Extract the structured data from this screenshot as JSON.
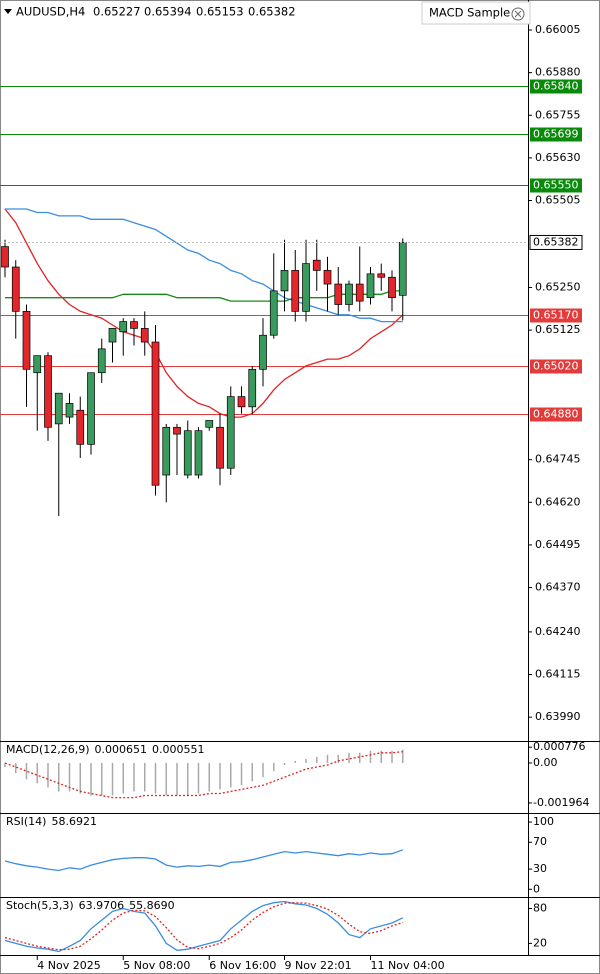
{
  "chart_data": [
    {
      "type": "candlestick",
      "title": "AUDUSD,H4",
      "expert": "MACD Sample",
      "categories": [
        null,
        null,
        null,
        "4 Nov 2025",
        null,
        null,
        null,
        null,
        null,
        null,
        null,
        "5 Nov 08:00",
        null,
        null,
        null,
        null,
        null,
        null,
        null,
        "6 Nov 16:00",
        null,
        null,
        null,
        null,
        null,
        null,
        "9 Nov 22:01",
        null,
        null,
        null,
        null,
        null,
        null,
        null,
        "11 Nov 04:00",
        null,
        null,
        null
      ],
      "candles": {
        "open": [
          0.6537,
          0.6531,
          0.6518,
          0.65,
          0.6505,
          0.6485,
          0.6487,
          0.6489,
          0.6479,
          0.65,
          0.6509,
          0.6512,
          0.6515,
          0.6513,
          0.6509,
          0.647,
          0.6484,
          0.647,
          0.647,
          0.6484,
          0.6484,
          0.6472,
          0.6493,
          0.649,
          0.6501,
          0.6511,
          0.6524,
          0.653,
          0.6518,
          0.6533,
          0.653,
          0.6526,
          0.652,
          0.6526,
          0.6522,
          0.6529,
          0.6528,
          0.65227
        ],
        "high": [
          0.6539,
          0.6533,
          0.652,
          0.6503,
          0.6506,
          0.6493,
          0.6494,
          0.6493,
          0.65,
          0.651,
          0.6513,
          0.6516,
          0.6516,
          0.6518,
          0.6514,
          0.6485,
          0.6485,
          0.6486,
          0.6484,
          0.6486,
          0.6488,
          0.6496,
          0.6496,
          0.6502,
          0.6516,
          0.6535,
          0.6539,
          0.6536,
          0.6539,
          0.6539,
          0.6534,
          0.6531,
          0.6527,
          0.6537,
          0.6531,
          0.6532,
          0.653,
          0.65394
        ],
        "low": [
          0.6528,
          0.651,
          0.649,
          0.6483,
          0.648,
          0.6458,
          0.6485,
          0.6475,
          0.6476,
          0.6497,
          0.6503,
          0.6505,
          0.6508,
          0.6505,
          0.6464,
          0.6462,
          0.647,
          0.6469,
          0.6469,
          0.6483,
          0.6467,
          0.647,
          0.6488,
          0.6488,
          0.6496,
          0.651,
          0.6518,
          0.6515,
          0.6515,
          0.6524,
          0.6518,
          0.6517,
          0.6518,
          0.6518,
          0.652,
          0.6524,
          0.6518,
          0.65153
        ],
        "close": [
          0.6531,
          0.6518,
          0.6501,
          0.6505,
          0.6484,
          0.6494,
          0.6491,
          0.6479,
          0.65,
          0.6507,
          0.6513,
          0.6515,
          0.6513,
          0.6509,
          0.6467,
          0.6484,
          0.6482,
          0.6483,
          0.6483,
          0.6486,
          0.6472,
          0.6493,
          0.649,
          0.6501,
          0.6511,
          0.6524,
          0.653,
          0.6518,
          0.6532,
          0.653,
          0.6526,
          0.652,
          0.6526,
          0.6521,
          0.6529,
          0.6528,
          0.6522,
          0.65382
        ],
        "up_color": "#3a9a5e",
        "down_color": "#e3262b"
      },
      "series": [
        {
          "color": "#e02424",
          "values": [
            0.6548,
            0.6544,
            0.6538,
            0.6532,
            0.6527,
            0.6523,
            0.652,
            0.6518,
            0.6517,
            0.6516,
            0.6514,
            0.6512,
            0.6511,
            0.651,
            0.6506,
            0.65,
            0.6496,
            0.6493,
            0.6491,
            0.649,
            0.6488,
            0.6487,
            0.6487,
            0.6488,
            0.6491,
            0.6495,
            0.6498,
            0.65,
            0.6502,
            0.6503,
            0.6504,
            0.6504,
            0.6505,
            0.6507,
            0.651,
            0.6512,
            0.6514,
            0.6517
          ]
        },
        {
          "color": "#3a8de0",
          "values": [
            0.6548,
            0.6548,
            0.6548,
            0.6547,
            0.6547,
            0.6546,
            0.6546,
            0.6546,
            0.6545,
            0.6545,
            0.6545,
            0.6545,
            0.6544,
            0.6543,
            0.6542,
            0.654,
            0.6538,
            0.6536,
            0.6535,
            0.6533,
            0.6532,
            0.653,
            0.6529,
            0.6527,
            0.6526,
            0.6524,
            0.6522,
            0.6521,
            0.652,
            0.6519,
            0.6518,
            0.6517,
            0.6517,
            0.6516,
            0.6516,
            0.6515,
            0.6515,
            0.6515
          ]
        },
        {
          "color": "#1a8a1a",
          "values": [
            0.6522,
            0.6522,
            0.6522,
            0.6522,
            0.6522,
            0.6522,
            0.6522,
            0.6522,
            0.6522,
            0.6522,
            0.6522,
            0.6523,
            0.6523,
            0.6523,
            0.6523,
            0.6523,
            0.6522,
            0.6522,
            0.6522,
            0.6522,
            0.6522,
            0.6521,
            0.6521,
            0.6521,
            0.6521,
            0.6521,
            0.6521,
            0.6522,
            0.6522,
            0.6522,
            0.6522,
            0.6523,
            0.6523,
            0.6523,
            0.6523,
            0.6523,
            0.6524,
            0.6524
          ]
        }
      ],
      "levels": [
        {
          "value": 0.6584,
          "label": "0.65840",
          "color": "#0a8a0a"
        },
        {
          "value": 0.65699,
          "label": "0.65699",
          "color": "#0a8a0a"
        },
        {
          "value": 0.6555,
          "label": "0.65550",
          "color": "#0a8a0a"
        },
        {
          "value": 0.6517,
          "label": "0.65170",
          "color": "#e23b3b"
        },
        {
          "value": 0.6502,
          "label": "0.65020",
          "color": "#e23b3b"
        },
        {
          "value": 0.6488,
          "label": "0.64880",
          "color": "#e23b3b"
        }
      ],
      "ylim": [
        0.63923,
        0.66093
      ],
      "yticks": [
        0.66005,
        {
          "value": 0.6588,
          "label": "0.65880"
        },
        0.65755,
        {
          "value": 0.6563,
          "label": "0.65630"
        },
        0.65505,
        {
          "value": 0.6525,
          "label": "0.65250"
        },
        0.65125,
        0.64745,
        {
          "value": 0.6462,
          "label": "0.64620"
        },
        0.64495,
        {
          "value": 0.6437,
          "label": "0.64370"
        },
        {
          "value": 0.6424,
          "label": "0.64240"
        },
        0.64115,
        {
          "value": 0.6399,
          "label": "0.63990"
        }
      ]
    },
    {
      "type": "macd",
      "title": "MACD(12,26,9)",
      "series": [
        {
          "color": "#a8a8a8",
          "values": [
            -0.0002,
            -0.0005,
            -0.0008,
            -0.001,
            -0.0012,
            -0.0014,
            -0.0014,
            -0.0015,
            -0.0016,
            -0.0016,
            -0.0016,
            -0.0015,
            -0.0014,
            -0.0014,
            -0.0015,
            -0.0016,
            -0.0016,
            -0.0016,
            -0.0015,
            -0.0014,
            -0.0013,
            -0.0012,
            -0.0011,
            -0.0009,
            -0.0007,
            -0.0004,
            -0.0001,
            0.0001,
            0.0002,
            0.0003,
            0.0004,
            0.0004,
            0.0005,
            0.0005,
            0.0006,
            0.0006,
            0.0006,
            0.000651
          ]
        },
        {
          "color": "#e02424",
          "values": [
            0,
            -0.0002,
            -0.0004,
            -0.0006,
            -0.0008,
            -0.001,
            -0.0012,
            -0.0014,
            -0.0015,
            -0.0016,
            -0.0017,
            -0.0017,
            -0.0017,
            -0.0016,
            -0.0016,
            -0.0016,
            -0.0016,
            -0.0016,
            -0.0016,
            -0.0015,
            -0.0015,
            -0.0014,
            -0.0013,
            -0.0012,
            -0.0011,
            -0.0009,
            -0.0007,
            -0.0005,
            -0.0003,
            -0.0002,
            -0.0001,
            0.0001,
            0.0002,
            0.0003,
            0.0004,
            0.0005,
            0.0005,
            0.000551
          ]
        }
      ],
      "ylim": [
        -0.00241,
        0.00103
      ],
      "yticks": [
        0.000776,
        {
          "value": 0,
          "label": "0.00"
        },
        -0.001964
      ]
    },
    {
      "type": "line",
      "title": "RSI(14)",
      "series": [
        {
          "color": "#3a8de0",
          "values": [
            42,
            38,
            35,
            33,
            30,
            28,
            32,
            30,
            36,
            40,
            44,
            46,
            47,
            47,
            45,
            36,
            33,
            35,
            34,
            36,
            34,
            40,
            41,
            44,
            48,
            52,
            56,
            54,
            56,
            54,
            52,
            50,
            53,
            51,
            54,
            52,
            53,
            58.6921
          ]
        }
      ],
      "ylim": [
        -10,
        112
      ],
      "yticks": [
        100,
        70,
        30,
        0
      ]
    },
    {
      "type": "line",
      "title": "Stoch(5,3,3)",
      "series": [
        {
          "color": "#3a8de0",
          "values": [
            25,
            20,
            15,
            12,
            10,
            6,
            15,
            25,
            45,
            60,
            75,
            80,
            75,
            72,
            50,
            20,
            8,
            10,
            15,
            20,
            25,
            45,
            60,
            75,
            85,
            90,
            92,
            88,
            86,
            80,
            70,
            55,
            35,
            30,
            45,
            50,
            55,
            63.9706
          ]
        },
        {
          "color": "#e02424",
          "dashed": true,
          "values": [
            30,
            25,
            20,
            15,
            12,
            9,
            10,
            15,
            28,
            43,
            60,
            72,
            77,
            76,
            66,
            47,
            26,
            13,
            11,
            15,
            20,
            30,
            43,
            60,
            73,
            83,
            89,
            90,
            89,
            85,
            79,
            68,
            53,
            40,
            37,
            42,
            50,
            55.869
          ],
          "value_labels": [
            null,
            null,
            null,
            null,
            null,
            null,
            null,
            null,
            null,
            null,
            null,
            null,
            null,
            null,
            null,
            null,
            null,
            null,
            null,
            null,
            null,
            null,
            null,
            null,
            null,
            null,
            null,
            null,
            null,
            null,
            null,
            null,
            null,
            null,
            null,
            null,
            null,
            "55.8690"
          ]
        }
      ],
      "ylim": [
        0,
        98
      ],
      "yticks": [
        80,
        20
      ]
    }
  ]
}
